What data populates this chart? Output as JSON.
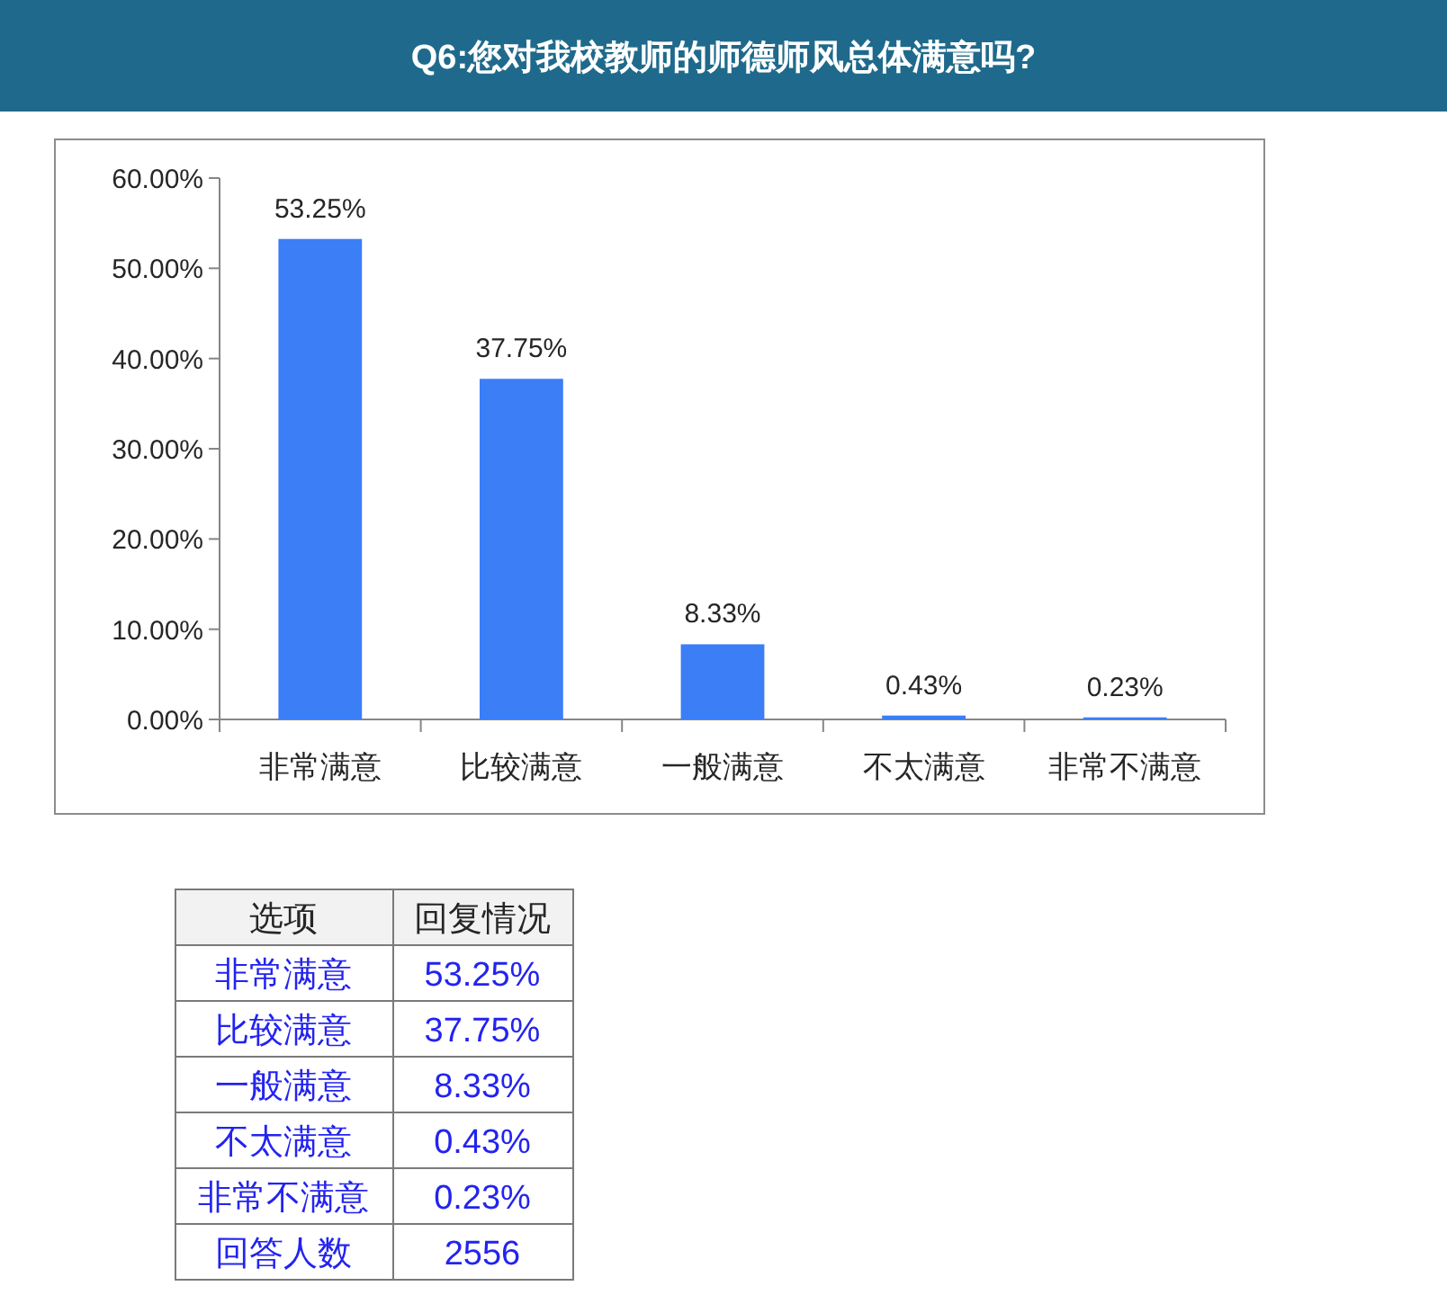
{
  "chart_data": {
    "type": "bar",
    "title": "Q6:您对我校教师的师德师风总体满意吗?",
    "categories": [
      "非常满意",
      "比较满意",
      "一般满意",
      "不太满意",
      "非常不满意"
    ],
    "values": [
      53.25,
      37.75,
      8.33,
      0.43,
      0.23
    ],
    "value_labels": [
      "53.25%",
      "37.75%",
      "8.33%",
      "0.43%",
      "0.23%"
    ],
    "color": "#3b7ef6",
    "ylim": [
      0,
      60
    ],
    "yticks": [
      {
        "value": 0,
        "label": "0.00%"
      },
      {
        "value": 10,
        "label": "10.00%"
      },
      {
        "value": 20,
        "label": "20.00%"
      },
      {
        "value": 30,
        "label": "30.00%"
      },
      {
        "value": 40,
        "label": "40.00%"
      },
      {
        "value": 50,
        "label": "50.00%"
      },
      {
        "value": 60,
        "label": "60.00%"
      }
    ],
    "annotations": [
      "选项",
      "回复情况",
      "回答人数",
      "2556"
    ]
  }
}
